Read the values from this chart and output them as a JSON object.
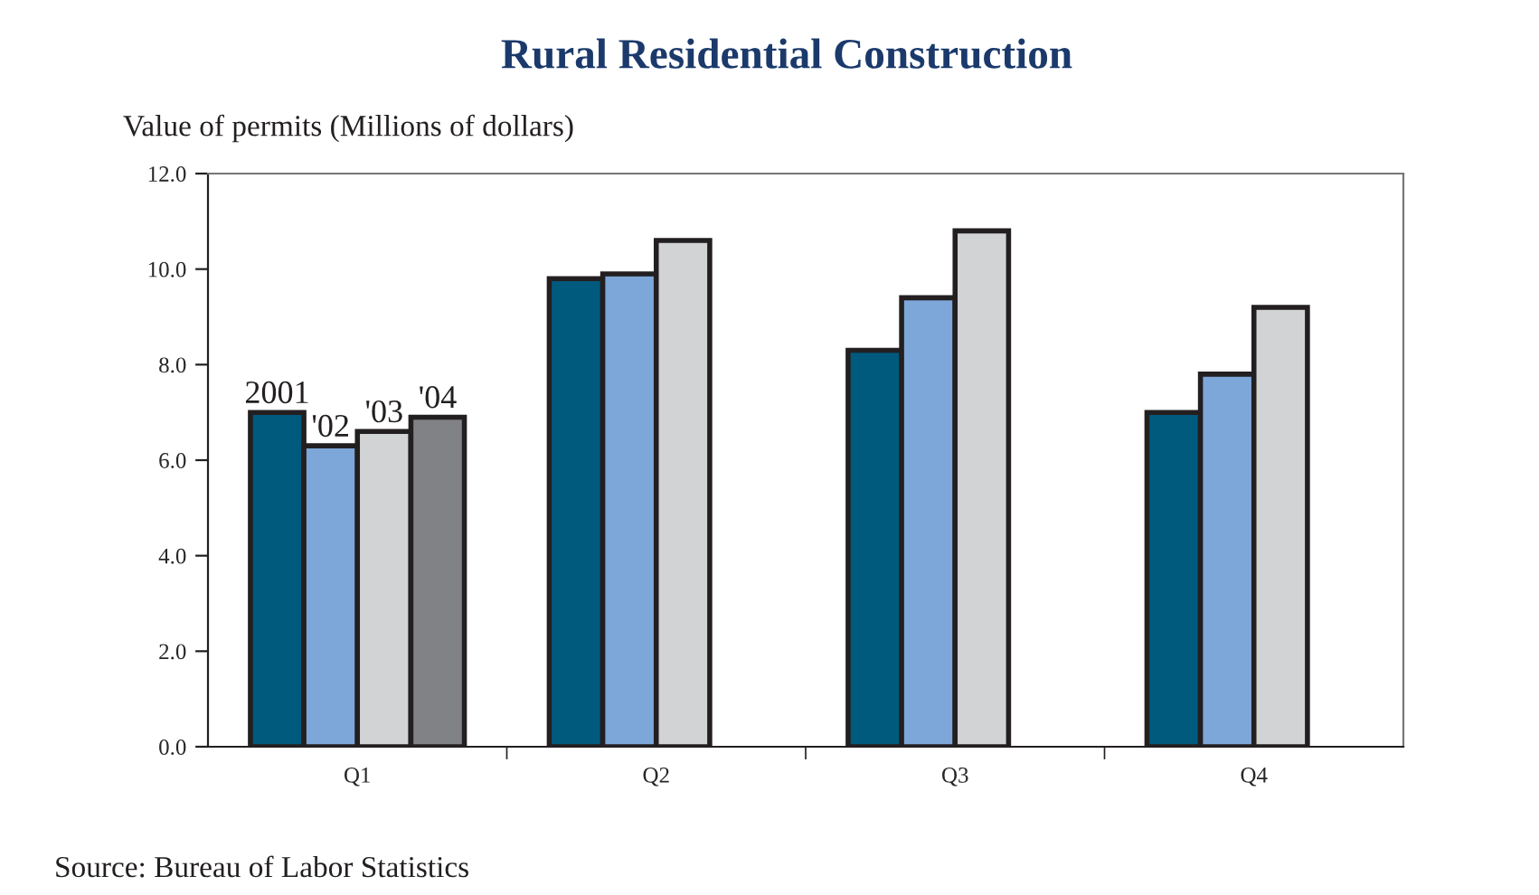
{
  "chart_data": {
    "type": "bar",
    "title": "Rural Residential Construction",
    "ylabel": "Value of permits (Millions of dollars)",
    "categories": [
      "Q1",
      "Q2",
      "Q3",
      "Q4"
    ],
    "series": [
      {
        "name": "2001",
        "color": "#005a7e",
        "values": [
          7.0,
          9.8,
          8.3,
          7.0
        ]
      },
      {
        "name": "'02",
        "color": "#7da7d9",
        "values": [
          6.3,
          9.9,
          9.4,
          7.8
        ]
      },
      {
        "name": "'03",
        "color": "#d1d3d4",
        "values": [
          6.6,
          10.6,
          10.8,
          9.2
        ]
      },
      {
        "name": "'04",
        "color": "#808285",
        "values": [
          6.9,
          null,
          null,
          null
        ]
      }
    ],
    "ylim": [
      0,
      12
    ],
    "yticks": [
      {
        "value": 0,
        "label": "0.0"
      },
      {
        "value": 2,
        "label": "2.0"
      },
      {
        "value": 4,
        "label": "4.0"
      },
      {
        "value": 6,
        "label": "6.0"
      },
      {
        "value": 8,
        "label": "8.0"
      },
      {
        "value": 10,
        "label": "10.0"
      },
      {
        "value": 12,
        "label": "12.0"
      }
    ],
    "grid": false,
    "legend": false,
    "annotations": [
      "Source: Bureau of Labor Statistics"
    ]
  }
}
